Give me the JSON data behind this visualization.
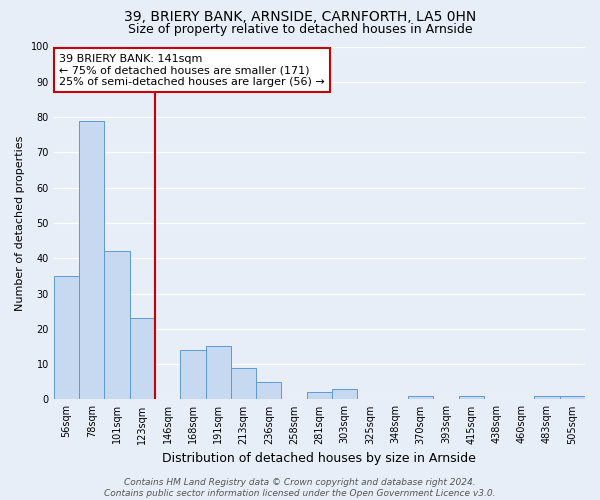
{
  "title": "39, BRIERY BANK, ARNSIDE, CARNFORTH, LA5 0HN",
  "subtitle": "Size of property relative to detached houses in Arnside",
  "xlabel": "Distribution of detached houses by size in Arnside",
  "ylabel": "Number of detached properties",
  "categories": [
    "56sqm",
    "78sqm",
    "101sqm",
    "123sqm",
    "146sqm",
    "168sqm",
    "191sqm",
    "213sqm",
    "236sqm",
    "258sqm",
    "281sqm",
    "303sqm",
    "325sqm",
    "348sqm",
    "370sqm",
    "393sqm",
    "415sqm",
    "438sqm",
    "460sqm",
    "483sqm",
    "505sqm"
  ],
  "values": [
    35,
    79,
    42,
    23,
    0,
    14,
    15,
    9,
    5,
    0,
    2,
    3,
    0,
    0,
    1,
    0,
    1,
    0,
    0,
    1,
    1
  ],
  "bar_color": "#c6d9f0",
  "bar_edge_color": "#5b9bd5",
  "vline_color": "#cc0000",
  "annotation_text": "39 BRIERY BANK: 141sqm\n← 75% of detached houses are smaller (171)\n25% of semi-detached houses are larger (56) →",
  "annotation_box_color": "#ffffff",
  "annotation_box_edge": "#cc0000",
  "ylim": [
    0,
    100
  ],
  "yticks": [
    0,
    10,
    20,
    30,
    40,
    50,
    60,
    70,
    80,
    90,
    100
  ],
  "background_color": "#e8eef7",
  "grid_color": "#ffffff",
  "footer_line1": "Contains HM Land Registry data © Crown copyright and database right 2024.",
  "footer_line2": "Contains public sector information licensed under the Open Government Licence v3.0.",
  "title_fontsize": 10,
  "subtitle_fontsize": 9,
  "xlabel_fontsize": 9,
  "ylabel_fontsize": 8,
  "tick_fontsize": 7,
  "annotation_fontsize": 8,
  "footer_fontsize": 6.5
}
